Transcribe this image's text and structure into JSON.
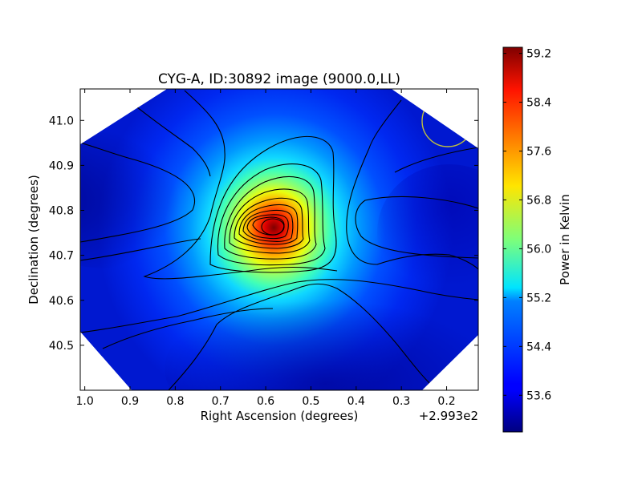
{
  "chart_data": {
    "type": "heatmap",
    "title": "CYG-A, ID:30892 image (9000.0,LL)",
    "xlabel": "Right Ascension (degrees)",
    "ylabel": "Declination (degrees)",
    "x_offset_label": "+2.993e2",
    "xlim": [
      1.01,
      0.13
    ],
    "ylim": [
      40.4,
      41.07
    ],
    "x_ticks": [
      "1.0",
      "0.9",
      "0.8",
      "0.7",
      "0.6",
      "0.5",
      "0.4",
      "0.3",
      "0.2"
    ],
    "x_tick_values": [
      1.0,
      0.9,
      0.8,
      0.7,
      0.6,
      0.5,
      0.4,
      0.3,
      0.2
    ],
    "y_ticks": [
      "40.5",
      "40.6",
      "40.7",
      "40.8",
      "40.9",
      "41.0"
    ],
    "y_tick_values": [
      40.5,
      40.6,
      40.7,
      40.8,
      40.9,
      41.0
    ],
    "colorbar": {
      "label": "Power in Kelvin",
      "range": [
        53.0,
        59.3
      ],
      "ticks": [
        "53.6",
        "54.4",
        "55.2",
        "56.0",
        "56.8",
        "57.6",
        "58.4",
        "59.2"
      ],
      "tick_values": [
        53.6,
        54.4,
        55.2,
        56.0,
        56.8,
        57.6,
        58.4,
        59.2
      ],
      "colormap": "jet"
    },
    "peak": {
      "ra_offset": 0.58,
      "dec": 40.765,
      "value": 59.25
    },
    "beam_circle": {
      "ra_offset": 0.2,
      "dec": 41.0,
      "color": "#bfbf3f"
    },
    "contour_color": "#000000",
    "grid": false
  }
}
